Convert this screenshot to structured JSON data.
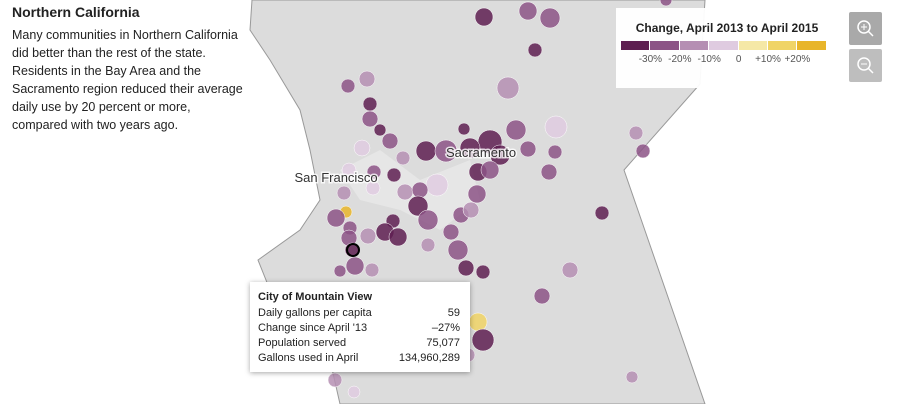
{
  "header": {
    "title": "Northern California",
    "description": "Many communities in Northern California did better than the rest of the state. Residents in the Bay Area and the Sacramento region reduced their average daily use by 20 percent or more, compared with two years ago."
  },
  "map": {
    "labels": [
      "San Francisco",
      "Sacramento"
    ]
  },
  "legend": {
    "title": "Change, April 2013 to April 2015",
    "colors": [
      "#5e1f51",
      "#8c5486",
      "#b58fb3",
      "#dfcbe0",
      "#f5e8a6",
      "#f0d466",
      "#e8b52a"
    ],
    "ticks": [
      "-30%",
      "-20%",
      "-10%",
      "0",
      "+10%",
      "+20%"
    ]
  },
  "tooltip": {
    "title": "City of Mountain View",
    "rows": [
      [
        "Daily gallons per capita",
        "59"
      ],
      [
        "Change since April '13",
        "–27%"
      ],
      [
        "Population served",
        "75,077"
      ],
      [
        "Gallons used in April",
        "134,960,289"
      ]
    ]
  }
}
